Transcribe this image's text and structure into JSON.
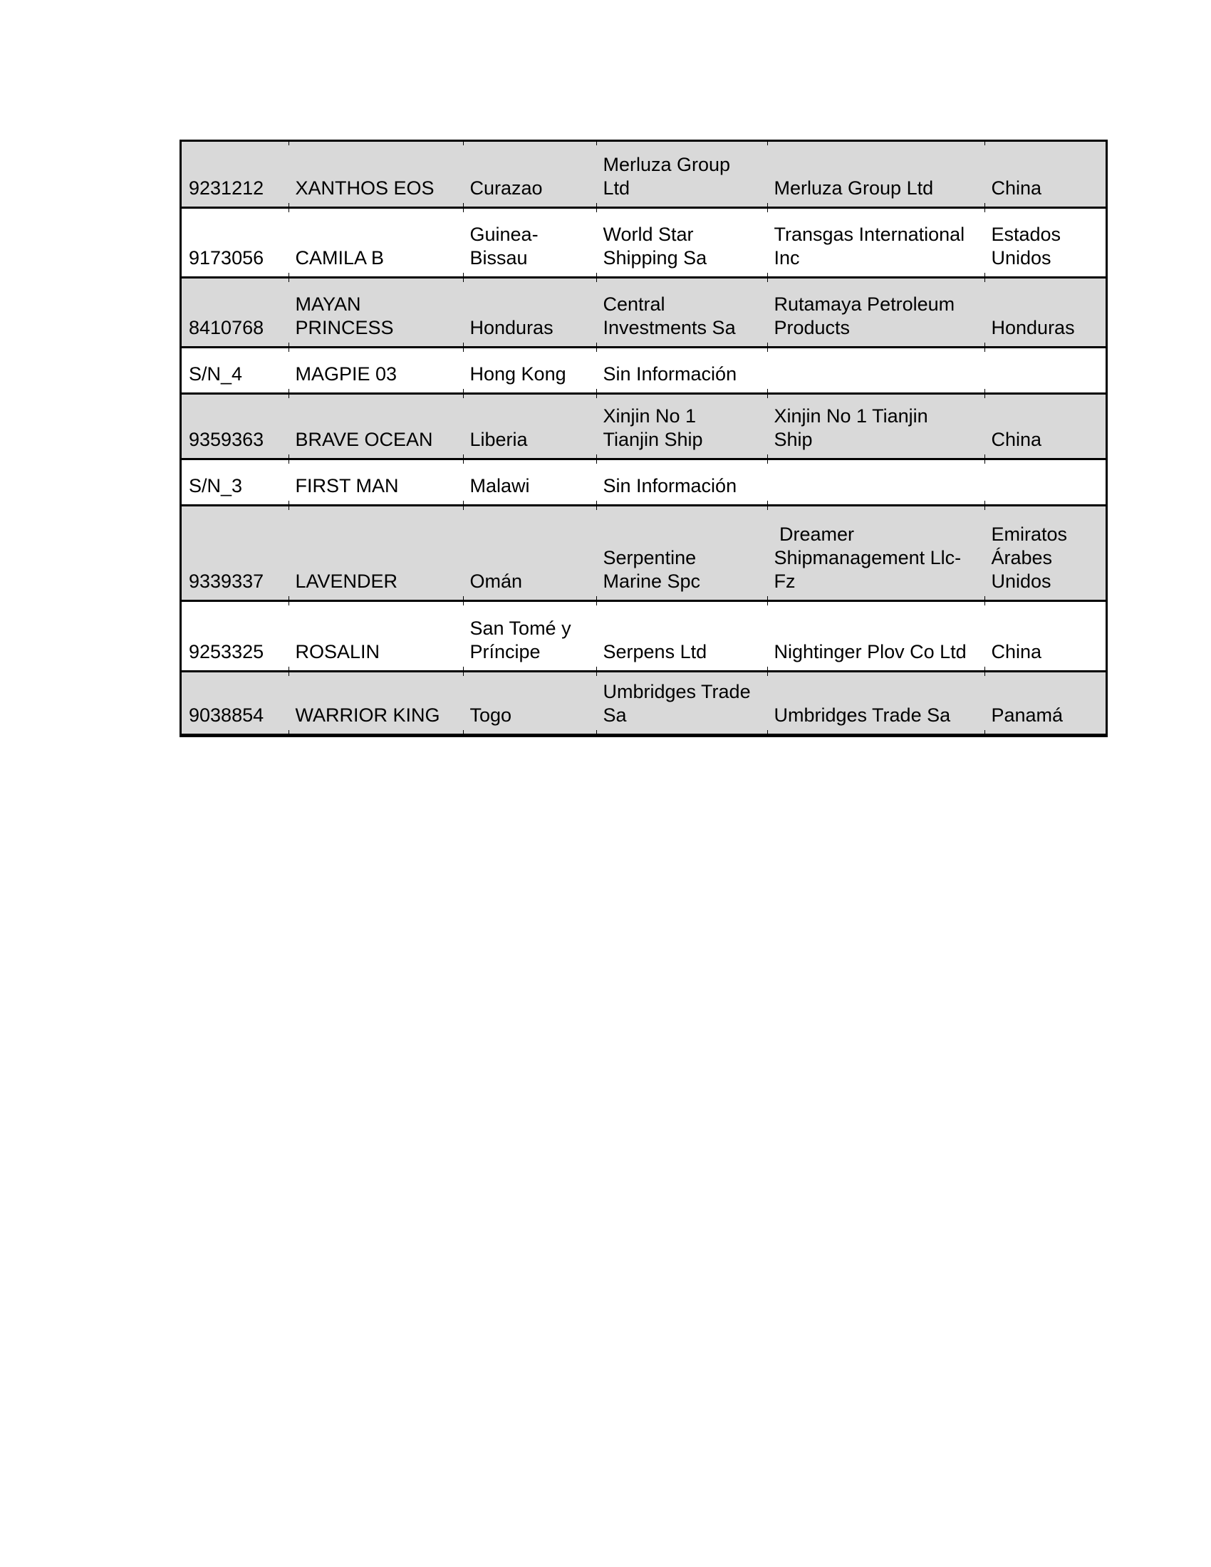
{
  "table": {
    "shading_color": "#d9d9d9",
    "border_color": "#000000",
    "columns": [
      "imo-number",
      "vessel-name",
      "flag",
      "manager",
      "owner",
      "country"
    ],
    "rows": [
      {
        "shaded": true,
        "cells": [
          "9231212",
          "XANTHOS EOS",
          "Curazao",
          "Merluza Group\nLtd",
          "Merluza Group Ltd",
          "China"
        ]
      },
      {
        "shaded": false,
        "cells": [
          "9173056",
          "CAMILA B",
          "Guinea-\nBissau",
          "World Star\nShipping Sa",
          "Transgas International\nInc",
          "Estados\nUnidos"
        ]
      },
      {
        "shaded": true,
        "cells": [
          "8410768",
          "MAYAN\nPRINCESS",
          "Honduras",
          "Central\nInvestments Sa",
          "Rutamaya Petroleum\nProducts",
          "Honduras"
        ]
      },
      {
        "shaded": false,
        "cells": [
          "S/N_4",
          "MAGPIE 03",
          "Hong Kong",
          "Sin Información",
          "",
          ""
        ]
      },
      {
        "shaded": true,
        "cells": [
          "9359363",
          "BRAVE OCEAN",
          "Liberia",
          "Xinjin No 1\nTianjin Ship",
          "Xinjin No 1 Tianjin\nShip",
          "China"
        ]
      },
      {
        "shaded": false,
        "cells": [
          "S/N_3",
          "FIRST MAN",
          "Malawi",
          "Sin Información",
          "",
          ""
        ]
      },
      {
        "shaded": true,
        "cells": [
          "9339337",
          "LAVENDER",
          "Omán",
          "Serpentine\nMarine Spc",
          " Dreamer\nShipmanagement Llc-\nFz",
          "Emiratos\nÁrabes\nUnidos"
        ]
      },
      {
        "shaded": false,
        "cells": [
          "9253325",
          "ROSALIN",
          "San Tomé y\nPríncipe",
          "Serpens Ltd",
          "Nightinger Plov Co Ltd",
          "China"
        ]
      },
      {
        "shaded": true,
        "cells": [
          "9038854",
          "WARRIOR KING",
          "Togo",
          "Umbridges Trade\nSa",
          "Umbridges Trade Sa",
          "Panamá"
        ]
      }
    ]
  }
}
